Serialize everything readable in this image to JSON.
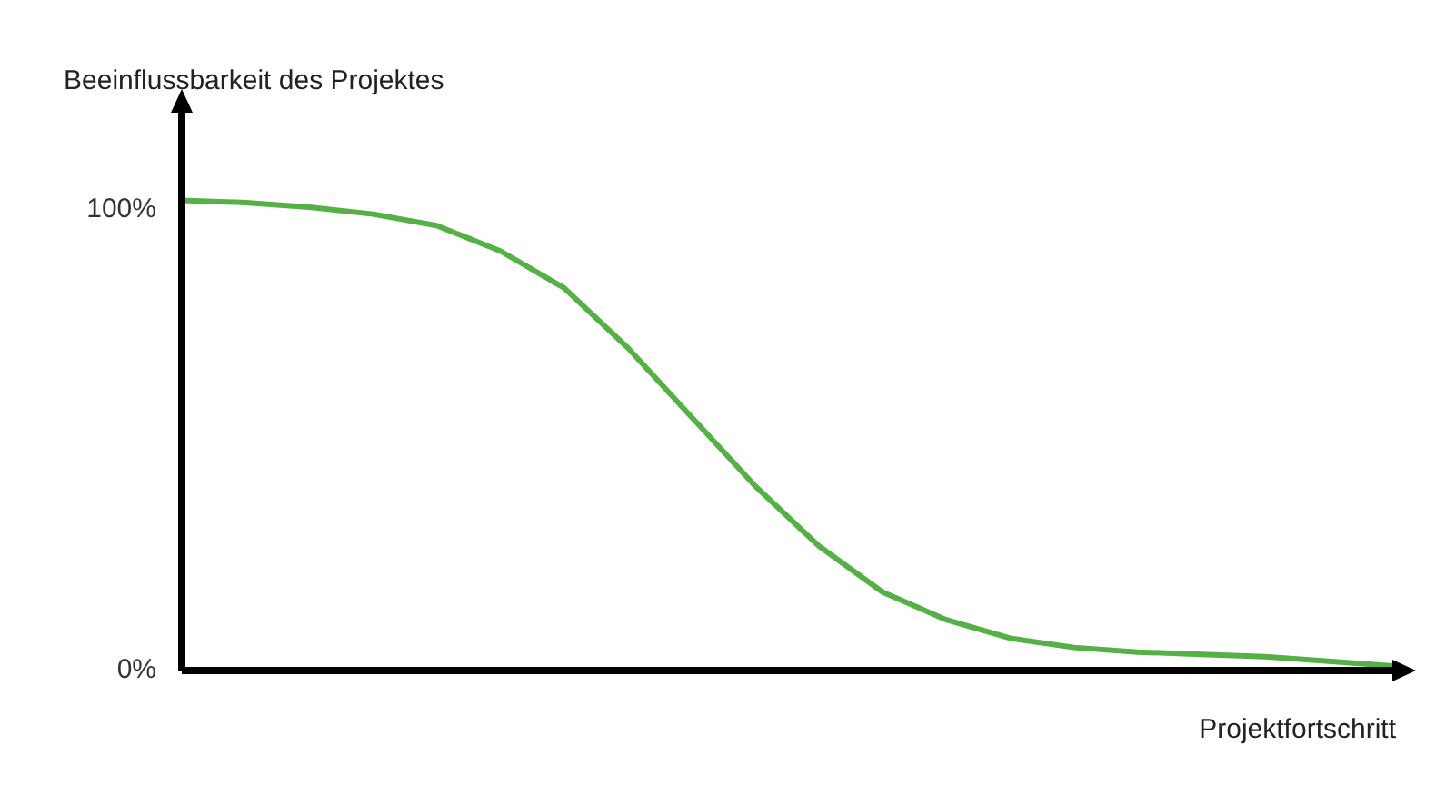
{
  "chart_data": {
    "type": "line",
    "xlabel": "Projektfortschritt",
    "ylabel": "Beeinflussbarkeit des Projektes",
    "categories": [
      null,
      null,
      null,
      null,
      null,
      null,
      null,
      null,
      null,
      null,
      null,
      null,
      null,
      null,
      null,
      null,
      null,
      null,
      null,
      null
    ],
    "series": [
      {
        "color": "#55b046",
        "values": [
          102,
          101.5,
          100.5,
          99,
          96.5,
          91,
          83,
          70,
          55,
          40,
          27,
          17,
          11,
          7,
          5,
          4,
          3.5,
          3,
          2,
          1
        ]
      }
    ],
    "ylim": [
      0,
      121
    ],
    "yticks": [
      {
        "value": 0,
        "label": "0%"
      },
      {
        "value": 100,
        "label": "100%"
      }
    ],
    "marker": "none",
    "line_style": "solid"
  }
}
